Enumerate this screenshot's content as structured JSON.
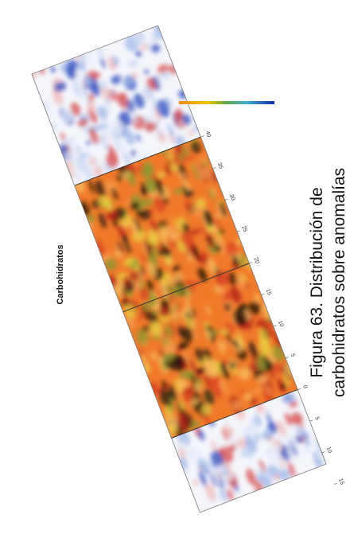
{
  "figure": {
    "label": "Carbohidratos",
    "caption_line1": "Figura 63. Distribución de",
    "caption_line2": "carbohidratos sobre anomalías",
    "axis_ticks": [
      "40",
      "35",
      "30",
      "25",
      "20",
      "15",
      "10",
      "5",
      "0",
      "5",
      "10",
      "15",
      "20"
    ]
  }
}
